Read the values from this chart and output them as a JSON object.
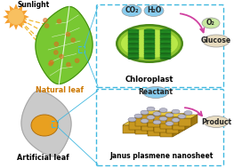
{
  "bg_color": "#ffffff",
  "sunlight_text": "Sunlight",
  "natural_leaf_text": "Natural leaf",
  "artificial_leaf_text": "Artificial leaf",
  "chloroplast_text": "Chloroplast",
  "nanosheet_text": "Janus plasmene nanosheet",
  "co2_text": "CO₂",
  "h2o_text": "H₂O",
  "o2_text": "O₂",
  "glucose_text": "Glucose",
  "reactant_text": "Reactant",
  "product_text": "Product",
  "sun_color": "#f5a030",
  "sun_inner_color": "#f8c060",
  "sun_ray_color": "#f0b830",
  "leaf_green_light": "#78c832",
  "leaf_green_mid": "#50a820",
  "leaf_green_dark": "#3a8010",
  "leaf_vein_color": "#ffffff",
  "chloroplast_outer": "#90c830",
  "chloroplast_border": "#4a8818",
  "chloroplast_inner_light": "#b8e848",
  "grana_color": "#228b22",
  "grana_dark": "#1a6a1a",
  "box_dash_color": "#40b8e0",
  "arrow_pink": "#d040a0",
  "co2_color": "#88ccee",
  "h2o_color": "#88ccee",
  "o2_color": "#c8e8a0",
  "glucose_color": "#e8dcc0",
  "art_leaf_gray": "#c8c8c8",
  "art_leaf_outline": "#a0a0a0",
  "art_nano_color": "#e8a020",
  "nano_top_color": "#e8c840",
  "nano_front_color": "#c89820",
  "nano_side_color": "#a07810",
  "nano_cap_color": "#b8b8c8",
  "reactant_color": "#88ccee",
  "product_color": "#e8dcc0",
  "figsize": [
    2.81,
    1.89
  ],
  "dpi": 100
}
